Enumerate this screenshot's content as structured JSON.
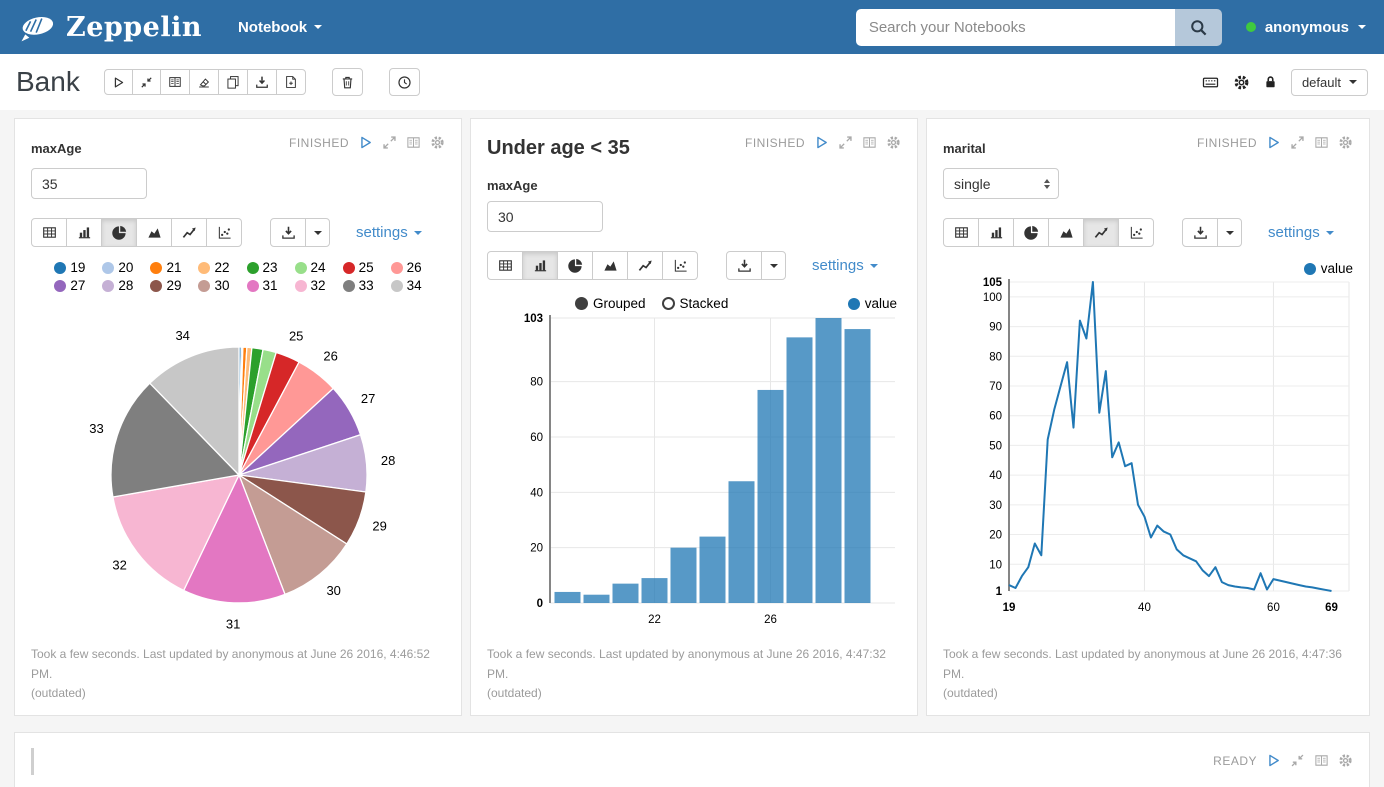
{
  "navbar": {
    "brand": "Zeppelin",
    "menu_label": "Notebook",
    "search_placeholder": "Search your Notebooks",
    "username": "anonymous"
  },
  "note_toolbar": {
    "title": "Bank",
    "interpreter_label": "default"
  },
  "paragraphs": [
    {
      "form_label": "maxAge",
      "input_value": "35",
      "status": "FINISHED",
      "settings_label": "settings",
      "active_chart": 2,
      "result_note": "Took a few seconds. Last updated by anonymous at June 26 2016, 4:46:52 PM.",
      "outdated_label": "(outdated)"
    },
    {
      "heading": "Under age < 35",
      "form_label": "maxAge",
      "input_value": "30",
      "status": "FINISHED",
      "settings_label": "settings",
      "active_chart": 1,
      "controls": {
        "grouped_label": "Grouped",
        "stacked_label": "Stacked",
        "legend_label": "value"
      },
      "result_note": "Took a few seconds. Last updated by anonymous at June 26 2016, 4:47:32 PM.",
      "outdated_label": "(outdated)"
    },
    {
      "form_label": "marital",
      "select_value": "single",
      "status": "FINISHED",
      "settings_label": "settings",
      "active_chart": 4,
      "legend_label": "value",
      "result_note": "Took a few seconds. Last updated by anonymous at June 26 2016, 4:47:36 PM.",
      "outdated_label": "(outdated)"
    }
  ],
  "empty_paragraph": {
    "status": "READY"
  },
  "chart_data": [
    {
      "type": "pie",
      "title": "age distribution (maxAge 35)",
      "categories": [
        "19",
        "20",
        "21",
        "22",
        "23",
        "24",
        "25",
        "26",
        "27",
        "28",
        "29",
        "30",
        "31",
        "32",
        "33",
        "34"
      ],
      "values": [
        4,
        3,
        7,
        9,
        20,
        24,
        44,
        77,
        96,
        103,
        99,
        144,
        185,
        216,
        221,
        175
      ],
      "colors": [
        "#1f77b4",
        "#aec7e8",
        "#ff7f0e",
        "#ffbb78",
        "#2ca02c",
        "#98df8a",
        "#d62728",
        "#ff9896",
        "#9467bd",
        "#c5b0d5",
        "#8c564b",
        "#c49c94",
        "#e377c2",
        "#f7b6d2",
        "#7f7f7f",
        "#c7c7c7"
      ],
      "labeled_slices": [
        "25",
        "26",
        "27",
        "28",
        "29",
        "30",
        "31",
        "32",
        "33",
        "34"
      ],
      "legend_position": "top"
    },
    {
      "type": "bar",
      "title": "Under age < 35 (maxAge 30)",
      "series_name": "value",
      "categories": [
        "19",
        "20",
        "21",
        "22",
        "23",
        "24",
        "25",
        "26",
        "27",
        "28",
        "29"
      ],
      "values": [
        4,
        3,
        7,
        9,
        20,
        24,
        44,
        77,
        96,
        103,
        99
      ],
      "color": "#1f77b4",
      "bar_opacity": 0.75,
      "ylim": [
        0,
        103
      ],
      "yticks": [
        0,
        20,
        40,
        60,
        80,
        103
      ],
      "xticks": [
        "22",
        "26"
      ],
      "grid": true,
      "modes": [
        "Grouped",
        "Stacked"
      ],
      "selected_mode": "Grouped",
      "legend_position": "top-right"
    },
    {
      "type": "line",
      "title": "marital = single, count by age",
      "series_name": "value",
      "x": [
        19,
        20,
        21,
        22,
        23,
        24,
        25,
        26,
        27,
        28,
        29,
        30,
        31,
        32,
        33,
        34,
        35,
        36,
        37,
        38,
        39,
        40,
        41,
        42,
        43,
        44,
        45,
        46,
        47,
        48,
        49,
        50,
        51,
        52,
        53,
        54,
        55,
        56,
        57,
        58,
        59,
        60,
        61,
        62,
        63,
        64,
        65,
        66,
        67,
        68,
        69
      ],
      "values": [
        3,
        2,
        6,
        9,
        17,
        13,
        52,
        62,
        70,
        78,
        56,
        92,
        86,
        105,
        61,
        75,
        46,
        51,
        43,
        44,
        30,
        26,
        19,
        23,
        21,
        20,
        15,
        13,
        12,
        11,
        8,
        6,
        9,
        4,
        3,
        2.5,
        2.2,
        2,
        1.5,
        7,
        1.5,
        5,
        4.5,
        4,
        3.5,
        3,
        2.5,
        2.2,
        1.8,
        1.4,
        1
      ],
      "color": "#1f77b4",
      "ylim": [
        1,
        105
      ],
      "yticks": [
        1,
        10,
        20,
        30,
        40,
        50,
        60,
        70,
        80,
        90,
        100,
        105
      ],
      "xticks": [
        19,
        40,
        60,
        69
      ],
      "grid": true,
      "legend_position": "top-right"
    }
  ]
}
